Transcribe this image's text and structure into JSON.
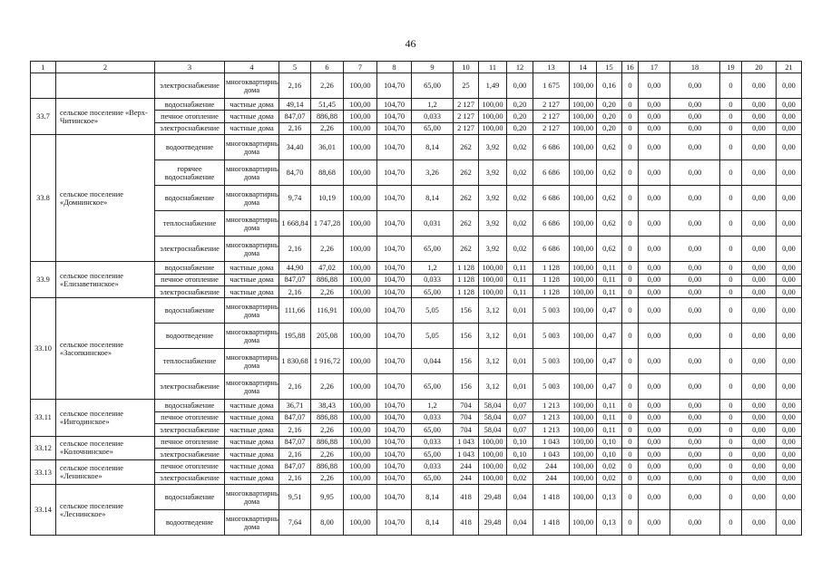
{
  "page_number": "46",
  "header": [
    "1",
    "2",
    "3",
    "4",
    "5",
    "6",
    "7",
    "8",
    "9",
    "10",
    "11",
    "12",
    "13",
    "14",
    "15",
    "16",
    "17",
    "18",
    "19",
    "20",
    "21"
  ],
  "groups": [
    {
      "num": "",
      "name": "",
      "rows": [
        [
          "электроснабжение",
          "многоквартирные дома",
          "2,16",
          "2,26",
          "100,00",
          "104,70",
          "65,00",
          "25",
          "1,49",
          "0,00",
          "1 675",
          "100,00",
          "0,16",
          "0",
          "0,00",
          "0,00",
          "0",
          "0,00",
          "0,00"
        ]
      ]
    },
    {
      "num": "33.7",
      "name": "сельское поселение «Верх-Читинское»",
      "rows": [
        [
          "водоснабжение",
          "частные дома",
          "49,14",
          "51,45",
          "100,00",
          "104,70",
          "1,2",
          "2 127",
          "100,00",
          "0,20",
          "2 127",
          "100,00",
          "0,20",
          "0",
          "0,00",
          "0,00",
          "0",
          "0,00",
          "0,00"
        ],
        [
          "печное отопление",
          "частные дома",
          "847,07",
          "886,88",
          "100,00",
          "104,70",
          "0,033",
          "2 127",
          "100,00",
          "0,20",
          "2 127",
          "100,00",
          "0,20",
          "0",
          "0,00",
          "0,00",
          "0",
          "0,00",
          "0,00"
        ],
        [
          "электроснабжение",
          "частные дома",
          "2,16",
          "2,26",
          "100,00",
          "104,70",
          "65,00",
          "2 127",
          "100,00",
          "0,20",
          "2 127",
          "100,00",
          "0,20",
          "0",
          "0,00",
          "0,00",
          "0",
          "0,00",
          "0,00"
        ]
      ]
    },
    {
      "num": "33.8",
      "name": "сельское поселение «Домнинское»",
      "rows": [
        [
          "водоотведение",
          "многоквартирные дома",
          "34,40",
          "36,01",
          "100,00",
          "104,70",
          "8,14",
          "262",
          "3,92",
          "0,02",
          "6 686",
          "100,00",
          "0,62",
          "0",
          "0,00",
          "0,00",
          "0",
          "0,00",
          "0,00"
        ],
        [
          "горячее водоснабжение",
          "многоквартирные дома",
          "84,70",
          "88,68",
          "100,00",
          "104,70",
          "3,26",
          "262",
          "3,92",
          "0,02",
          "6 686",
          "100,00",
          "0,62",
          "0",
          "0,00",
          "0,00",
          "0",
          "0,00",
          "0,00"
        ],
        [
          "водоснабжение",
          "многоквартирные дома",
          "9,74",
          "10,19",
          "100,00",
          "104,70",
          "8,14",
          "262",
          "3,92",
          "0,02",
          "6 686",
          "100,00",
          "0,62",
          "0",
          "0,00",
          "0,00",
          "0",
          "0,00",
          "0,00"
        ],
        [
          "теплоснабжение",
          "многоквартирные дома",
          "1 668,84",
          "1 747,28",
          "100,00",
          "104,70",
          "0,031",
          "262",
          "3,92",
          "0,02",
          "6 686",
          "100,00",
          "0,62",
          "0",
          "0,00",
          "0,00",
          "0",
          "0,00",
          "0,00"
        ],
        [
          "электроснабжение",
          "многоквартирные дома",
          "2,16",
          "2,26",
          "100,00",
          "104,70",
          "65,00",
          "262",
          "3,92",
          "0,02",
          "6 686",
          "100,00",
          "0,62",
          "0",
          "0,00",
          "0,00",
          "0",
          "0,00",
          "0,00"
        ]
      ]
    },
    {
      "num": "33.9",
      "name": "сельское поселение «Елизаветинское»",
      "rows": [
        [
          "водоснабжение",
          "частные дома",
          "44,90",
          "47,02",
          "100,00",
          "104,70",
          "1,2",
          "1 128",
          "100,00",
          "0,11",
          "1 128",
          "100,00",
          "0,11",
          "0",
          "0,00",
          "0,00",
          "0",
          "0,00",
          "0,00"
        ],
        [
          "печное отопление",
          "частные дома",
          "847,07",
          "886,88",
          "100,00",
          "104,70",
          "0,033",
          "1 128",
          "100,00",
          "0,11",
          "1 128",
          "100,00",
          "0,11",
          "0",
          "0,00",
          "0,00",
          "0",
          "0,00",
          "0,00"
        ],
        [
          "электроснабжение",
          "частные дома",
          "2,16",
          "2,26",
          "100,00",
          "104,70",
          "65,00",
          "1 128",
          "100,00",
          "0,11",
          "1 128",
          "100,00",
          "0,11",
          "0",
          "0,00",
          "0,00",
          "0",
          "0,00",
          "0,00"
        ]
      ]
    },
    {
      "num": "33.10",
      "name": "сельское поселение «Засопкинское»",
      "rows": [
        [
          "водоснабжение",
          "многоквартирные дома",
          "111,66",
          "116,91",
          "100,00",
          "104,70",
          "5,05",
          "156",
          "3,12",
          "0,01",
          "5 003",
          "100,00",
          "0,47",
          "0",
          "0,00",
          "0,00",
          "0",
          "0,00",
          "0,00"
        ],
        [
          "водоотведение",
          "многоквартирные дома",
          "195,88",
          "205,08",
          "100,00",
          "104,70",
          "5,05",
          "156",
          "3,12",
          "0,01",
          "5 003",
          "100,00",
          "0,47",
          "0",
          "0,00",
          "0,00",
          "0",
          "0,00",
          "0,00"
        ],
        [
          "теплоснабжение",
          "многоквартирные дома",
          "1 830,68",
          "1 916,72",
          "100,00",
          "104,70",
          "0,044",
          "156",
          "3,12",
          "0,01",
          "5 003",
          "100,00",
          "0,47",
          "0",
          "0,00",
          "0,00",
          "0",
          "0,00",
          "0,00"
        ],
        [
          "электроснабжение",
          "многоквартирные дома",
          "2,16",
          "2,26",
          "100,00",
          "104,70",
          "65,00",
          "156",
          "3,12",
          "0,01",
          "5 003",
          "100,00",
          "0,47",
          "0",
          "0,00",
          "0,00",
          "0",
          "0,00",
          "0,00"
        ]
      ]
    },
    {
      "num": "33.11",
      "name": "сельское поселение «Ингодинское»",
      "rows": [
        [
          "водоснабжение",
          "частные дома",
          "36,71",
          "38,43",
          "100,00",
          "104,70",
          "1,2",
          "704",
          "58,04",
          "0,07",
          "1 213",
          "100,00",
          "0,11",
          "0",
          "0,00",
          "0,00",
          "0",
          "0,00",
          "0,00"
        ],
        [
          "печное отопление",
          "частные дома",
          "847,07",
          "886,88",
          "100,00",
          "104,70",
          "0,033",
          "704",
          "58,04",
          "0,07",
          "1 213",
          "100,00",
          "0,11",
          "0",
          "0,00",
          "0,00",
          "0",
          "0,00",
          "0,00"
        ],
        [
          "электроснабжение",
          "частные дома",
          "2,16",
          "2,26",
          "100,00",
          "104,70",
          "65,00",
          "704",
          "58,04",
          "0,07",
          "1 213",
          "100,00",
          "0,11",
          "0",
          "0,00",
          "0,00",
          "0",
          "0,00",
          "0,00"
        ]
      ]
    },
    {
      "num": "33.12",
      "name": "сельское поселение «Колочнинское»",
      "rows": [
        [
          "печное отопление",
          "частные дома",
          "847,07",
          "886,88",
          "100,00",
          "104,70",
          "0,033",
          "1 043",
          "100,00",
          "0,10",
          "1 043",
          "100,00",
          "0,10",
          "0",
          "0,00",
          "0,00",
          "0",
          "0,00",
          "0,00"
        ],
        [
          "электроснабжение",
          "частные дома",
          "2,16",
          "2,26",
          "100,00",
          "104,70",
          "65,00",
          "1 043",
          "100,00",
          "0,10",
          "1 043",
          "100,00",
          "0,10",
          "0",
          "0,00",
          "0,00",
          "0",
          "0,00",
          "0,00"
        ]
      ]
    },
    {
      "num": "33.13",
      "name": "сельское поселение «Ленинское»",
      "rows": [
        [
          "печное отопление",
          "частные дома",
          "847,07",
          "886,88",
          "100,00",
          "104,70",
          "0,033",
          "244",
          "100,00",
          "0,02",
          "244",
          "100,00",
          "0,02",
          "0",
          "0,00",
          "0,00",
          "0",
          "0,00",
          "0,00"
        ],
        [
          "электроснабжение",
          "частные дома",
          "2,16",
          "2,26",
          "100,00",
          "104,70",
          "65,00",
          "244",
          "100,00",
          "0,02",
          "244",
          "100,00",
          "0,02",
          "0",
          "0,00",
          "0,00",
          "0",
          "0,00",
          "0,00"
        ]
      ]
    },
    {
      "num": "33.14",
      "name": "сельское поселение «Леснинское»",
      "rows": [
        [
          "водоснабжение",
          "многоквартирные дома",
          "9,51",
          "9,95",
          "100,00",
          "104,70",
          "8,14",
          "418",
          "29,48",
          "0,04",
          "1 418",
          "100,00",
          "0,13",
          "0",
          "0,00",
          "0,00",
          "0",
          "0,00",
          "0,00"
        ],
        [
          "водоотведение",
          "многоквартирные дома",
          "7,64",
          "8,00",
          "100,00",
          "104,70",
          "8,14",
          "418",
          "29,48",
          "0,04",
          "1 418",
          "100,00",
          "0,13",
          "0",
          "0,00",
          "0,00",
          "0",
          "0,00",
          "0,00"
        ]
      ]
    }
  ]
}
